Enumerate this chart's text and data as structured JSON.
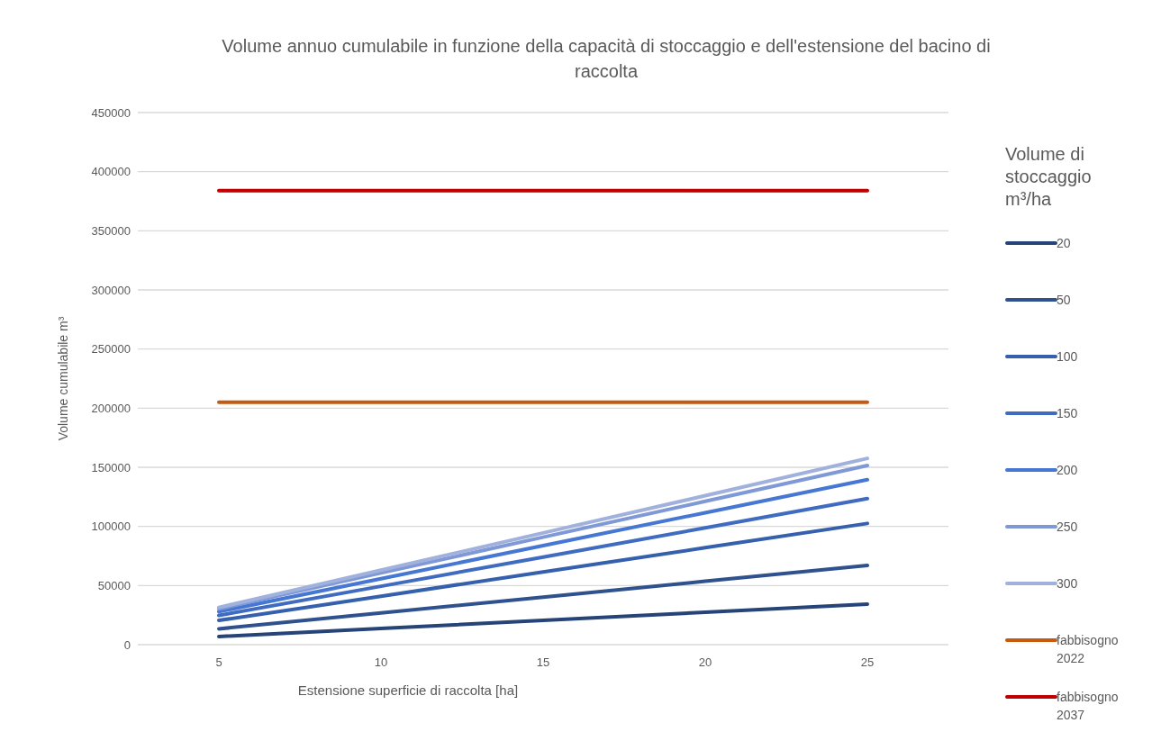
{
  "chart_data": {
    "type": "line",
    "title": "Volume annuo cumulabile in funzione della capacità di stoccaggio e dell'estensione del bacino di raccolta",
    "xlabel": "Estensione superficie di raccolta [ha]",
    "ylabel": "Volume cumulabile m³",
    "legend_title": "Volume di stoccaggio m³/ha",
    "categories": [
      "5",
      "10",
      "15",
      "20",
      "25"
    ],
    "ylim": [
      0,
      450000
    ],
    "yticks": [
      0,
      50000,
      100000,
      150000,
      200000,
      250000,
      300000,
      350000,
      400000,
      450000
    ],
    "grid": "y",
    "legend": "right",
    "marker": "none",
    "line_style": "solid",
    "series": [
      {
        "name": "20",
        "color": "#264478",
        "values": [
          6850,
          13700,
          20550,
          27400,
          34250
        ]
      },
      {
        "name": "50",
        "color": "#2f528f",
        "values": [
          13400,
          26800,
          40200,
          53600,
          67000
        ]
      },
      {
        "name": "100",
        "color": "#3560ad",
        "values": [
          20500,
          41000,
          61500,
          82000,
          102500
        ]
      },
      {
        "name": "150",
        "color": "#3f6cc0",
        "values": [
          24700,
          49400,
          74100,
          98800,
          123500
        ]
      },
      {
        "name": "200",
        "color": "#4677d2",
        "values": [
          27900,
          55800,
          83700,
          111600,
          139500
        ]
      },
      {
        "name": "250",
        "color": "#7f98d6",
        "values": [
          30300,
          60600,
          90900,
          121200,
          151500
        ]
      },
      {
        "name": "300",
        "color": "#a0b1dd",
        "values": [
          31500,
          63000,
          94500,
          126000,
          157500
        ]
      },
      {
        "name": "fabbisogno 2022",
        "color": "#c55a11",
        "values": [
          205000,
          205000,
          205000,
          205000,
          205000
        ]
      },
      {
        "name": "fabbisogno 2037",
        "color": "#c00000",
        "values": [
          384000,
          384000,
          384000,
          384000,
          384000
        ]
      }
    ]
  }
}
